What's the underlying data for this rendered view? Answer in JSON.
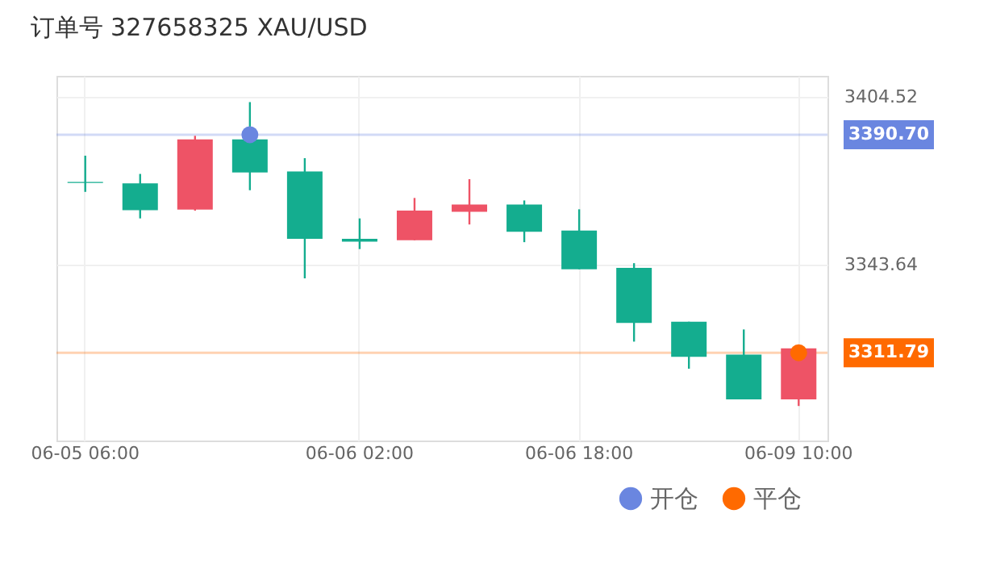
{
  "chart_data": {
    "type": "candlestick",
    "title": "订单号 327658325    XAU/USD",
    "categories": [
      "06-05 06:00",
      null,
      null,
      null,
      null,
      "06-06 02:00",
      null,
      null,
      null,
      "06-06 18:00",
      null,
      null,
      null,
      "06-09 10:00"
    ],
    "ohlc": [
      [
        3373.6,
        3383.1,
        3370.0,
        3373.2
      ],
      [
        3373.1,
        3376.5,
        3360.4,
        3363.4
      ],
      [
        3363.6,
        3390.3,
        3363.2,
        3389.0
      ],
      [
        3389.0,
        3402.5,
        3370.6,
        3377.0
      ],
      [
        3377.4,
        3382.2,
        3338.7,
        3353.0
      ],
      [
        3353.0,
        3360.4,
        3349.3,
        3352.0
      ],
      [
        3352.5,
        3367.8,
        3352.5,
        3363.2
      ],
      [
        3362.8,
        3374.6,
        3358.2,
        3365.4
      ],
      [
        3365.4,
        3366.9,
        3351.8,
        3355.6
      ],
      [
        3356.0,
        3363.7,
        3342.0,
        3342.0
      ],
      [
        3342.5,
        3344.2,
        3315.8,
        3322.6
      ],
      [
        3323.0,
        3323.0,
        3306.0,
        3310.3
      ],
      [
        3311.1,
        3320.2,
        3294.9,
        3294.9
      ],
      [
        3294.9,
        3313.8,
        3292.5,
        3313.4
      ]
    ],
    "colors": [
      "#14ad8f",
      "#14ad8f",
      "#ee5366",
      "#14ad8f",
      "#14ad8f",
      "#14ad8f",
      "#ee5366",
      "#ee5366",
      "#14ad8f",
      "#14ad8f",
      "#14ad8f",
      "#14ad8f",
      "#14ad8f",
      "#ee5366"
    ],
    "series": [
      {
        "name": "开仓",
        "type": "scatter",
        "color": "#6a86e0",
        "values": [
          null,
          null,
          null,
          3390.7,
          null,
          null,
          null,
          null,
          null,
          null,
          null,
          null,
          null,
          null
        ]
      },
      {
        "name": "平仓",
        "type": "scatter",
        "color": "#ff6a00",
        "values": [
          null,
          null,
          null,
          null,
          null,
          null,
          null,
          null,
          null,
          null,
          null,
          null,
          null,
          3311.79
        ]
      }
    ],
    "ref_lines": [
      {
        "axis": "y",
        "value": 3390.7,
        "label": "3390.70",
        "color": "#6a86e0"
      },
      {
        "axis": "y",
        "value": 3311.79,
        "label": "3311.79",
        "color": "#ff6a00"
      }
    ],
    "ylim": [
      3280,
      3412
    ],
    "yticks": [
      3404.52,
      3343.64
    ],
    "marker": "circle",
    "grid": true,
    "legend": "bottom right"
  }
}
